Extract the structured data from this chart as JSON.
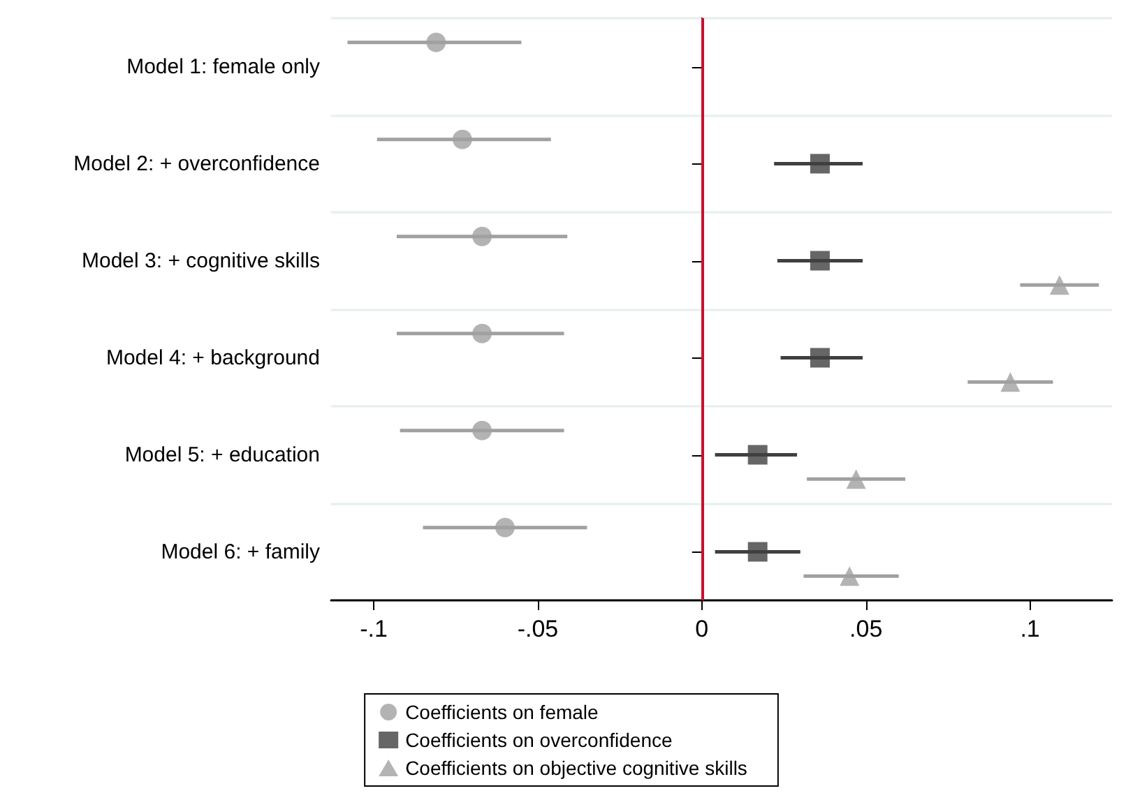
{
  "chart_data": {
    "type": "scatter",
    "orientation": "horizontal",
    "categories": [
      "Model 1: female only",
      "Model 2: + overconfidence",
      "Model 3: + cognitive skills",
      "Model 4: + background",
      "Model 5: + education",
      "Model 6: + family"
    ],
    "series": [
      {
        "name": "Coefficients on female",
        "color": "#a0a0a0",
        "marker": "circle",
        "values": [
          -0.081,
          -0.073,
          -0.067,
          -0.067,
          -0.067,
          -0.06
        ],
        "errors": [
          [
            -0.108,
            -0.055
          ],
          [
            -0.099,
            -0.046
          ],
          [
            -0.093,
            -0.041
          ],
          [
            -0.093,
            -0.042
          ],
          [
            -0.092,
            -0.042
          ],
          [
            -0.085,
            -0.035
          ]
        ]
      },
      {
        "name": "Coefficients on overconfidence",
        "color": "#404040",
        "marker": "square",
        "values": [
          null,
          0.036,
          0.036,
          0.036,
          0.017,
          0.017
        ],
        "errors": [
          null,
          [
            0.022,
            0.049
          ],
          [
            0.023,
            0.049
          ],
          [
            0.024,
            0.049
          ],
          [
            0.004,
            0.029
          ],
          [
            0.004,
            0.03
          ]
        ]
      },
      {
        "name": "Coefficients on objective cognitive skills",
        "color": "#a0a0a0",
        "marker": "triangle",
        "values": [
          null,
          null,
          0.109,
          0.094,
          0.047,
          0.045
        ],
        "errors": [
          null,
          null,
          [
            0.097,
            0.121
          ],
          [
            0.081,
            0.107
          ],
          [
            0.032,
            0.062
          ],
          [
            0.031,
            0.06
          ]
        ]
      }
    ],
    "xlim": [
      -0.113,
      0.125
    ],
    "xticks": [
      {
        "value": -0.1,
        "label": "-.1"
      },
      {
        "value": -0.05,
        "label": "-.05"
      },
      0,
      {
        "value": 0.05,
        "label": ".05"
      },
      {
        "value": 0.1,
        "label": ".1"
      }
    ],
    "ref_lines": [
      {
        "axis": "x",
        "value": 0,
        "color": "#c8102e"
      }
    ],
    "grid": "y",
    "legend": "bottom"
  }
}
